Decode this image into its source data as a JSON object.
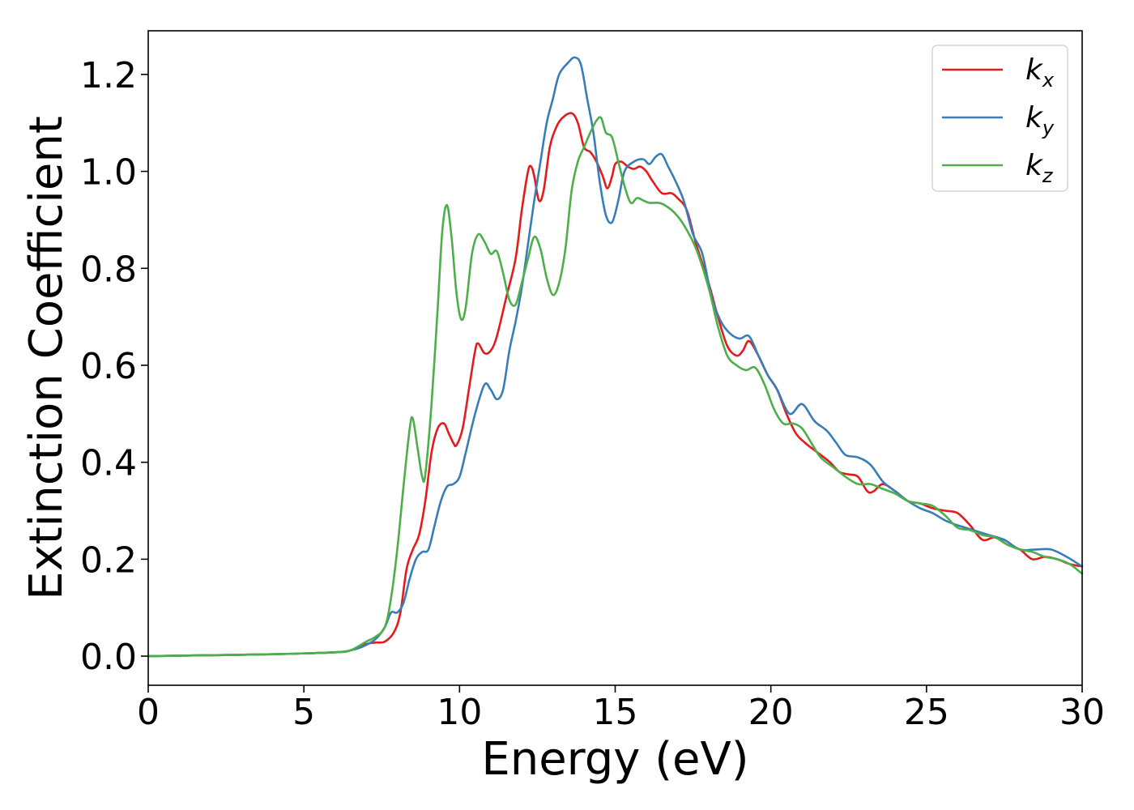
{
  "chart_data": {
    "type": "line",
    "title": "",
    "xlabel": "Energy (eV)",
    "ylabel": "Extinction Coefficient",
    "xlim": [
      0,
      30
    ],
    "ylim": [
      -0.06,
      1.29
    ],
    "xticks": [
      0,
      5,
      10,
      15,
      20,
      25,
      30
    ],
    "xtick_labels": [
      "0",
      "5",
      "10",
      "15",
      "20",
      "25",
      "30"
    ],
    "yticks": [
      0.0,
      0.2,
      0.4,
      0.6,
      0.8,
      1.0,
      1.2
    ],
    "ytick_labels": [
      "0.0",
      "0.2",
      "0.4",
      "0.6",
      "0.8",
      "1.0",
      "1.2"
    ],
    "grid": false,
    "legend": "top-right",
    "series": [
      {
        "name": "k_x",
        "label_base": "k",
        "label_sub": "x",
        "color": "#e41a1c",
        "points": [
          [
            0,
            0
          ],
          [
            2,
            0.002
          ],
          [
            4,
            0.004
          ],
          [
            6,
            0.008
          ],
          [
            6.5,
            0.012
          ],
          [
            7,
            0.025
          ],
          [
            7.3,
            0.028
          ],
          [
            7.6,
            0.03
          ],
          [
            7.9,
            0.05
          ],
          [
            8.1,
            0.09
          ],
          [
            8.3,
            0.18
          ],
          [
            8.5,
            0.22
          ],
          [
            8.7,
            0.25
          ],
          [
            8.9,
            0.32
          ],
          [
            9.1,
            0.42
          ],
          [
            9.3,
            0.47
          ],
          [
            9.5,
            0.48
          ],
          [
            9.65,
            0.46
          ],
          [
            9.8,
            0.44
          ],
          [
            9.9,
            0.435
          ],
          [
            10.1,
            0.47
          ],
          [
            10.3,
            0.55
          ],
          [
            10.5,
            0.63
          ],
          [
            10.6,
            0.645
          ],
          [
            10.8,
            0.625
          ],
          [
            11.0,
            0.63
          ],
          [
            11.2,
            0.66
          ],
          [
            11.5,
            0.74
          ],
          [
            11.8,
            0.82
          ],
          [
            12.0,
            0.92
          ],
          [
            12.2,
            1.0
          ],
          [
            12.3,
            1.01
          ],
          [
            12.4,
            0.99
          ],
          [
            12.55,
            0.94
          ],
          [
            12.7,
            0.96
          ],
          [
            12.9,
            1.05
          ],
          [
            13.1,
            1.09
          ],
          [
            13.3,
            1.11
          ],
          [
            13.6,
            1.12
          ],
          [
            13.8,
            1.1
          ],
          [
            14.0,
            1.05
          ],
          [
            14.2,
            1.04
          ],
          [
            14.4,
            1.02
          ],
          [
            14.6,
            0.99
          ],
          [
            14.75,
            0.965
          ],
          [
            14.9,
            0.99
          ],
          [
            15.0,
            1.015
          ],
          [
            15.2,
            1.02
          ],
          [
            15.4,
            1.01
          ],
          [
            15.6,
            1.005
          ],
          [
            15.8,
            1.01
          ],
          [
            16.0,
            1.0
          ],
          [
            16.2,
            0.98
          ],
          [
            16.5,
            0.955
          ],
          [
            16.8,
            0.955
          ],
          [
            17.0,
            0.945
          ],
          [
            17.3,
            0.92
          ],
          [
            17.6,
            0.85
          ],
          [
            18.0,
            0.77
          ],
          [
            18.3,
            0.7
          ],
          [
            18.6,
            0.64
          ],
          [
            18.9,
            0.62
          ],
          [
            19.1,
            0.63
          ],
          [
            19.3,
            0.65
          ],
          [
            19.6,
            0.62
          ],
          [
            19.9,
            0.58
          ],
          [
            20.2,
            0.55
          ],
          [
            20.5,
            0.5
          ],
          [
            20.8,
            0.46
          ],
          [
            21.1,
            0.44
          ],
          [
            21.5,
            0.42
          ],
          [
            21.9,
            0.4
          ],
          [
            22.2,
            0.38
          ],
          [
            22.5,
            0.375
          ],
          [
            22.8,
            0.37
          ],
          [
            23.1,
            0.34
          ],
          [
            23.3,
            0.34
          ],
          [
            23.6,
            0.355
          ],
          [
            24.0,
            0.34
          ],
          [
            24.4,
            0.32
          ],
          [
            24.8,
            0.315
          ],
          [
            25.2,
            0.305
          ],
          [
            25.6,
            0.3
          ],
          [
            26.0,
            0.295
          ],
          [
            26.4,
            0.27
          ],
          [
            26.8,
            0.24
          ],
          [
            27.2,
            0.245
          ],
          [
            27.6,
            0.23
          ],
          [
            28.0,
            0.22
          ],
          [
            28.4,
            0.2
          ],
          [
            28.8,
            0.205
          ],
          [
            29.2,
            0.2
          ],
          [
            29.6,
            0.19
          ],
          [
            30,
            0.185
          ]
        ]
      },
      {
        "name": "k_y",
        "label_base": "k",
        "label_sub": "y",
        "color": "#377eb8",
        "points": [
          [
            0,
            0
          ],
          [
            2,
            0.002
          ],
          [
            4,
            0.004
          ],
          [
            6,
            0.008
          ],
          [
            6.5,
            0.012
          ],
          [
            6.9,
            0.02
          ],
          [
            7.3,
            0.035
          ],
          [
            7.6,
            0.06
          ],
          [
            7.8,
            0.09
          ],
          [
            8.0,
            0.09
          ],
          [
            8.2,
            0.11
          ],
          [
            8.4,
            0.16
          ],
          [
            8.6,
            0.2
          ],
          [
            8.8,
            0.215
          ],
          [
            9.0,
            0.22
          ],
          [
            9.2,
            0.27
          ],
          [
            9.4,
            0.32
          ],
          [
            9.6,
            0.35
          ],
          [
            9.8,
            0.355
          ],
          [
            10.0,
            0.37
          ],
          [
            10.2,
            0.42
          ],
          [
            10.5,
            0.5
          ],
          [
            10.8,
            0.56
          ],
          [
            11.0,
            0.55
          ],
          [
            11.2,
            0.53
          ],
          [
            11.4,
            0.55
          ],
          [
            11.6,
            0.63
          ],
          [
            11.8,
            0.69
          ],
          [
            12.0,
            0.76
          ],
          [
            12.2,
            0.85
          ],
          [
            12.4,
            0.94
          ],
          [
            12.6,
            1.02
          ],
          [
            12.8,
            1.1
          ],
          [
            13.0,
            1.15
          ],
          [
            13.2,
            1.2
          ],
          [
            13.5,
            1.225
          ],
          [
            13.7,
            1.235
          ],
          [
            13.9,
            1.22
          ],
          [
            14.1,
            1.15
          ],
          [
            14.3,
            1.08
          ],
          [
            14.5,
            0.98
          ],
          [
            14.7,
            0.91
          ],
          [
            14.9,
            0.895
          ],
          [
            15.1,
            0.94
          ],
          [
            15.3,
            1.0
          ],
          [
            15.6,
            1.02
          ],
          [
            15.9,
            1.025
          ],
          [
            16.1,
            1.015
          ],
          [
            16.3,
            1.03
          ],
          [
            16.5,
            1.035
          ],
          [
            16.7,
            1.01
          ],
          [
            16.9,
            0.985
          ],
          [
            17.2,
            0.94
          ],
          [
            17.5,
            0.87
          ],
          [
            17.8,
            0.83
          ],
          [
            18.1,
            0.74
          ],
          [
            18.4,
            0.69
          ],
          [
            18.7,
            0.665
          ],
          [
            19.0,
            0.655
          ],
          [
            19.3,
            0.66
          ],
          [
            19.6,
            0.62
          ],
          [
            19.9,
            0.58
          ],
          [
            20.2,
            0.55
          ],
          [
            20.6,
            0.5
          ],
          [
            21.0,
            0.52
          ],
          [
            21.4,
            0.485
          ],
          [
            21.8,
            0.465
          ],
          [
            22.1,
            0.44
          ],
          [
            22.4,
            0.415
          ],
          [
            22.8,
            0.41
          ],
          [
            23.2,
            0.395
          ],
          [
            23.6,
            0.36
          ],
          [
            24.0,
            0.34
          ],
          [
            24.4,
            0.32
          ],
          [
            24.8,
            0.305
          ],
          [
            25.2,
            0.295
          ],
          [
            25.6,
            0.28
          ],
          [
            26.0,
            0.27
          ],
          [
            26.5,
            0.26
          ],
          [
            27.0,
            0.25
          ],
          [
            27.5,
            0.24
          ],
          [
            28.0,
            0.22
          ],
          [
            28.5,
            0.22
          ],
          [
            29.0,
            0.22
          ],
          [
            29.5,
            0.205
          ],
          [
            30,
            0.185
          ]
        ]
      },
      {
        "name": "k_z",
        "label_base": "k",
        "label_sub": "z",
        "color": "#4daf4a",
        "points": [
          [
            0,
            0
          ],
          [
            2,
            0.002
          ],
          [
            4,
            0.004
          ],
          [
            6,
            0.008
          ],
          [
            6.5,
            0.012
          ],
          [
            7,
            0.03
          ],
          [
            7.3,
            0.04
          ],
          [
            7.6,
            0.06
          ],
          [
            7.8,
            0.12
          ],
          [
            8.0,
            0.22
          ],
          [
            8.2,
            0.35
          ],
          [
            8.4,
            0.47
          ],
          [
            8.5,
            0.49
          ],
          [
            8.65,
            0.43
          ],
          [
            8.8,
            0.37
          ],
          [
            8.9,
            0.375
          ],
          [
            9.1,
            0.52
          ],
          [
            9.3,
            0.72
          ],
          [
            9.45,
            0.88
          ],
          [
            9.6,
            0.93
          ],
          [
            9.75,
            0.86
          ],
          [
            9.9,
            0.75
          ],
          [
            10.05,
            0.695
          ],
          [
            10.2,
            0.72
          ],
          [
            10.4,
            0.83
          ],
          [
            10.6,
            0.87
          ],
          [
            10.8,
            0.855
          ],
          [
            11.0,
            0.83
          ],
          [
            11.2,
            0.835
          ],
          [
            11.4,
            0.79
          ],
          [
            11.6,
            0.735
          ],
          [
            11.8,
            0.725
          ],
          [
            12.0,
            0.77
          ],
          [
            12.2,
            0.82
          ],
          [
            12.4,
            0.865
          ],
          [
            12.6,
            0.84
          ],
          [
            12.8,
            0.78
          ],
          [
            13.0,
            0.745
          ],
          [
            13.2,
            0.77
          ],
          [
            13.4,
            0.84
          ],
          [
            13.6,
            0.96
          ],
          [
            13.8,
            1.02
          ],
          [
            14.0,
            1.05
          ],
          [
            14.2,
            1.08
          ],
          [
            14.4,
            1.105
          ],
          [
            14.55,
            1.11
          ],
          [
            14.7,
            1.08
          ],
          [
            14.9,
            1.07
          ],
          [
            15.1,
            1.02
          ],
          [
            15.3,
            0.97
          ],
          [
            15.5,
            0.935
          ],
          [
            15.7,
            0.945
          ],
          [
            15.9,
            0.94
          ],
          [
            16.1,
            0.935
          ],
          [
            16.4,
            0.935
          ],
          [
            16.6,
            0.93
          ],
          [
            16.9,
            0.915
          ],
          [
            17.2,
            0.89
          ],
          [
            17.6,
            0.84
          ],
          [
            18.0,
            0.76
          ],
          [
            18.3,
            0.68
          ],
          [
            18.6,
            0.62
          ],
          [
            18.9,
            0.6
          ],
          [
            19.2,
            0.59
          ],
          [
            19.5,
            0.595
          ],
          [
            19.8,
            0.56
          ],
          [
            20.1,
            0.51
          ],
          [
            20.4,
            0.48
          ],
          [
            20.7,
            0.48
          ],
          [
            21.0,
            0.47
          ],
          [
            21.3,
            0.44
          ],
          [
            21.6,
            0.41
          ],
          [
            22.0,
            0.39
          ],
          [
            22.4,
            0.37
          ],
          [
            22.8,
            0.355
          ],
          [
            23.2,
            0.355
          ],
          [
            23.6,
            0.345
          ],
          [
            24.0,
            0.335
          ],
          [
            24.4,
            0.32
          ],
          [
            24.8,
            0.315
          ],
          [
            25.2,
            0.31
          ],
          [
            25.6,
            0.29
          ],
          [
            26.0,
            0.265
          ],
          [
            26.4,
            0.26
          ],
          [
            26.8,
            0.25
          ],
          [
            27.2,
            0.245
          ],
          [
            27.6,
            0.23
          ],
          [
            28.0,
            0.22
          ],
          [
            28.4,
            0.215
          ],
          [
            28.8,
            0.205
          ],
          [
            29.2,
            0.2
          ],
          [
            29.6,
            0.19
          ],
          [
            30,
            0.17
          ]
        ]
      }
    ]
  }
}
